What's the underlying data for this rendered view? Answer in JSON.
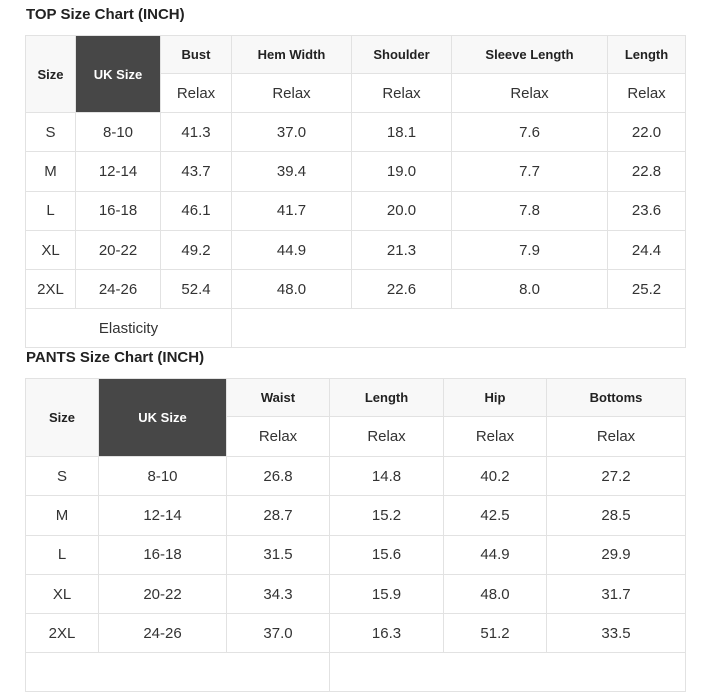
{
  "top": {
    "title": "TOP Size Chart (INCH)",
    "headers": [
      "Size",
      "UK Size",
      "Bust",
      "Hem Width",
      "Shoulder",
      "Sleeve Length",
      "Length"
    ],
    "sub": [
      "Relax",
      "Relax",
      "Relax",
      "Relax",
      "Relax"
    ],
    "rows": [
      [
        "S",
        "8-10",
        "41.3",
        "37.0",
        "18.1",
        "7.6",
        "22.0"
      ],
      [
        "M",
        "12-14",
        "43.7",
        "39.4",
        "19.0",
        "7.7",
        "22.8"
      ],
      [
        "L",
        "16-18",
        "46.1",
        "41.7",
        "20.0",
        "7.8",
        "23.6"
      ],
      [
        "XL",
        "20-22",
        "49.2",
        "44.9",
        "21.3",
        "7.9",
        "24.4"
      ],
      [
        "2XL",
        "24-26",
        "52.4",
        "48.0",
        "22.6",
        "8.0",
        "25.2"
      ]
    ],
    "elasticity_label": "Elasticity"
  },
  "pants": {
    "title": "PANTS Size Chart (INCH)",
    "headers": [
      "Size",
      "UK Size",
      "Waist",
      "Length",
      "Hip",
      "Bottoms"
    ],
    "sub": [
      "Relax",
      "Relax",
      "Relax",
      "Relax"
    ],
    "rows": [
      [
        "S",
        "8-10",
        "26.8",
        "14.8",
        "40.2",
        "27.2"
      ],
      [
        "M",
        "12-14",
        "28.7",
        "15.2",
        "42.5",
        "28.5"
      ],
      [
        "L",
        "16-18",
        "31.5",
        "15.6",
        "44.9",
        "29.9"
      ],
      [
        "XL",
        "20-22",
        "34.3",
        "15.9",
        "48.0",
        "31.7"
      ],
      [
        "2XL",
        "24-26",
        "37.0",
        "16.3",
        "51.2",
        "33.5"
      ]
    ]
  },
  "colors": {
    "header_dark": "#474747",
    "header_light": "#f8f8f8",
    "border": "#e2e2e2"
  }
}
